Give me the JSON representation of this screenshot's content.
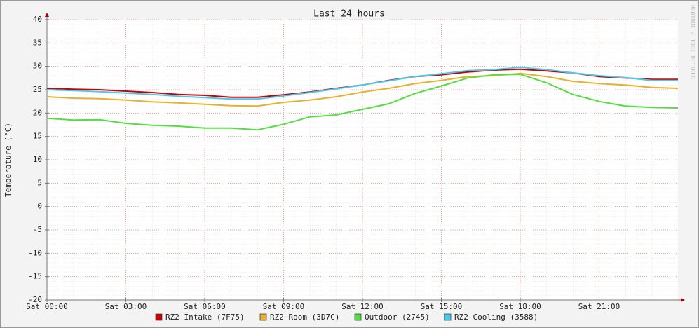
{
  "chart_data": {
    "type": "line",
    "title": "Last 24 hours",
    "y_label": "Temperature (°C)",
    "watermark": "RRDTOOL / TOBI OETIKER",
    "x": [
      0,
      1,
      2,
      3,
      4,
      5,
      6,
      7,
      8,
      9,
      10,
      11,
      12,
      13,
      14,
      15,
      16,
      17,
      18,
      19,
      20,
      21,
      22,
      23,
      24
    ],
    "xlim": [
      0,
      24
    ],
    "xticks": [
      {
        "value": 0,
        "label": "Sat 00:00"
      },
      {
        "value": 3,
        "label": "Sat 03:00"
      },
      {
        "value": 6,
        "label": "Sat 06:00"
      },
      {
        "value": 9,
        "label": "Sat 09:00"
      },
      {
        "value": 12,
        "label": "Sat 12:00"
      },
      {
        "value": 15,
        "label": "Sat 15:00"
      },
      {
        "value": 18,
        "label": "Sat 18:00"
      },
      {
        "value": 21,
        "label": "Sat 21:00"
      }
    ],
    "ylim": [
      -20,
      40
    ],
    "yticks": [
      -20,
      -15,
      -10,
      -5,
      0,
      5,
      10,
      15,
      20,
      25,
      30,
      35,
      40
    ],
    "grid": true,
    "legend": "bottom",
    "series": [
      {
        "name": "RZ2 Intake (7F75)",
        "color": "#cc0000",
        "values": [
          25.3,
          25.1,
          25.0,
          24.7,
          24.4,
          24.0,
          23.8,
          23.4,
          23.4,
          23.9,
          24.5,
          25.3,
          26.0,
          27.0,
          27.8,
          28.2,
          28.8,
          29.2,
          29.4,
          29.0,
          28.6,
          27.8,
          27.5,
          27.2,
          27.2
        ]
      },
      {
        "name": "RZ2 Room (3D7C)",
        "color": "#e8b030",
        "values": [
          23.5,
          23.2,
          23.1,
          22.8,
          22.4,
          22.2,
          21.9,
          21.6,
          21.5,
          22.3,
          22.8,
          23.5,
          24.5,
          25.3,
          26.3,
          27.0,
          27.8,
          28.0,
          28.5,
          27.8,
          26.8,
          26.3,
          26.0,
          25.5,
          25.3
        ]
      },
      {
        "name": "Outdoor (2745)",
        "color": "#55dd44",
        "values": [
          18.9,
          18.5,
          18.6,
          17.8,
          17.4,
          17.2,
          16.8,
          16.8,
          16.4,
          17.6,
          19.2,
          19.6,
          20.8,
          22.0,
          24.2,
          25.8,
          27.5,
          28.2,
          28.3,
          26.5,
          24.0,
          22.5,
          21.5,
          21.2,
          21.1
        ]
      },
      {
        "name": "RZ2 Cooling (3588)",
        "color": "#44ccee",
        "values": [
          25.0,
          24.8,
          24.6,
          24.3,
          24.0,
          23.6,
          23.3,
          23.0,
          23.0,
          23.7,
          24.4,
          25.2,
          26.0,
          26.9,
          27.8,
          28.4,
          29.1,
          29.3,
          29.8,
          29.3,
          28.6,
          28.0,
          27.6,
          27.0,
          27.0
        ]
      }
    ]
  }
}
